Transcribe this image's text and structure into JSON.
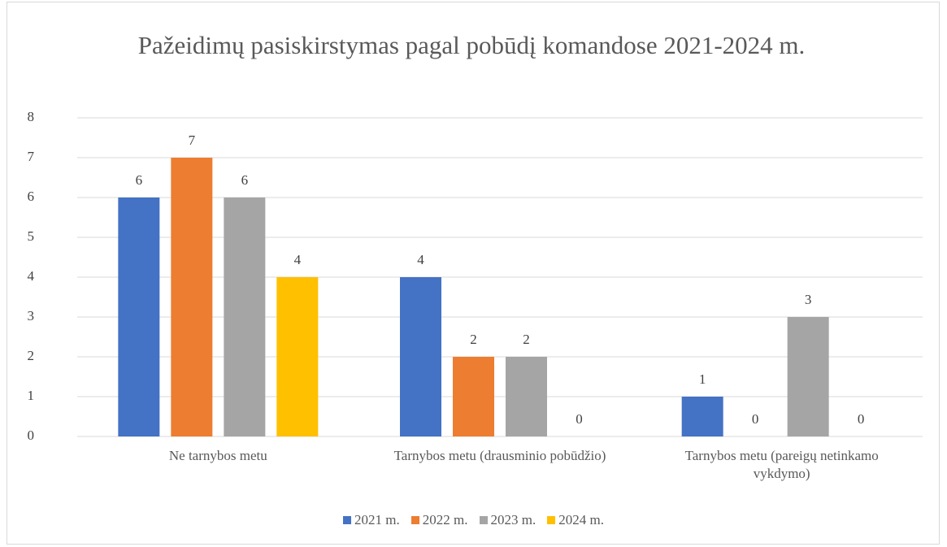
{
  "chart_data": {
    "type": "bar",
    "title": "Pažeidimų pasiskirstymas pagal pobūdį komandose 2021-2024 m.",
    "categories": [
      "Ne tarnybos metu",
      "Tarnybos metu (drausminio pobūdžio)",
      "Tarnybos metu (pareigų netinkamo vykdymo)"
    ],
    "series": [
      {
        "name": "2021 m.",
        "color": "#4472c4",
        "values": [
          6,
          4,
          1
        ]
      },
      {
        "name": "2022 m.",
        "color": "#ed7d31",
        "values": [
          7,
          2,
          0
        ]
      },
      {
        "name": "2023 m.",
        "color": "#a5a5a5",
        "values": [
          6,
          2,
          3
        ]
      },
      {
        "name": "2024 m.",
        "color": "#ffc000",
        "values": [
          4,
          0,
          0
        ]
      }
    ],
    "ylim": [
      0,
      8
    ],
    "yticks": [
      0,
      1,
      2,
      3,
      4,
      5,
      6,
      7,
      8
    ],
    "grid": true,
    "legend": "bottom"
  }
}
